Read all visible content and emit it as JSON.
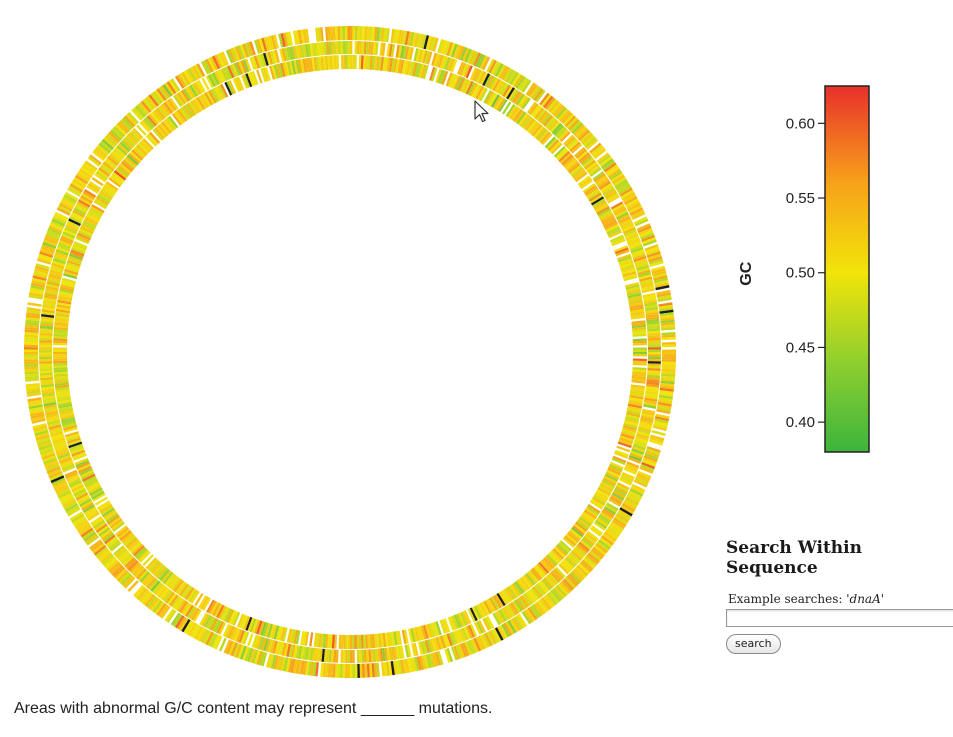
{
  "chart_data": {
    "type": "circular-gc-map",
    "colorbar": {
      "label": "GC",
      "min": 0.38,
      "max": 0.625,
      "ticks": [
        0.4,
        0.45,
        0.5,
        0.55,
        0.6
      ],
      "tick_labels": [
        "0.40",
        "0.45",
        "0.50",
        "0.55",
        "0.60"
      ],
      "color_stops": [
        {
          "value": 0.38,
          "color": "#3cb43c"
        },
        {
          "value": 0.44,
          "color": "#8fcf2f"
        },
        {
          "value": 0.5,
          "color": "#f2e40a"
        },
        {
          "value": 0.56,
          "color": "#f7a21a"
        },
        {
          "value": 0.625,
          "color": "#e8302b"
        }
      ]
    },
    "ring": {
      "segments": 820,
      "gc_mean": 0.51,
      "gc_spread": 0.055,
      "outlier_color": "#1e1e1e"
    }
  },
  "search": {
    "title": "Search Within Sequence",
    "example_prefix": "Example searches: ",
    "example_term": "'dnaA'",
    "input_value": "",
    "button_label": "search"
  },
  "caption": "Areas with abnormal G/C content may represent ______ mutations."
}
